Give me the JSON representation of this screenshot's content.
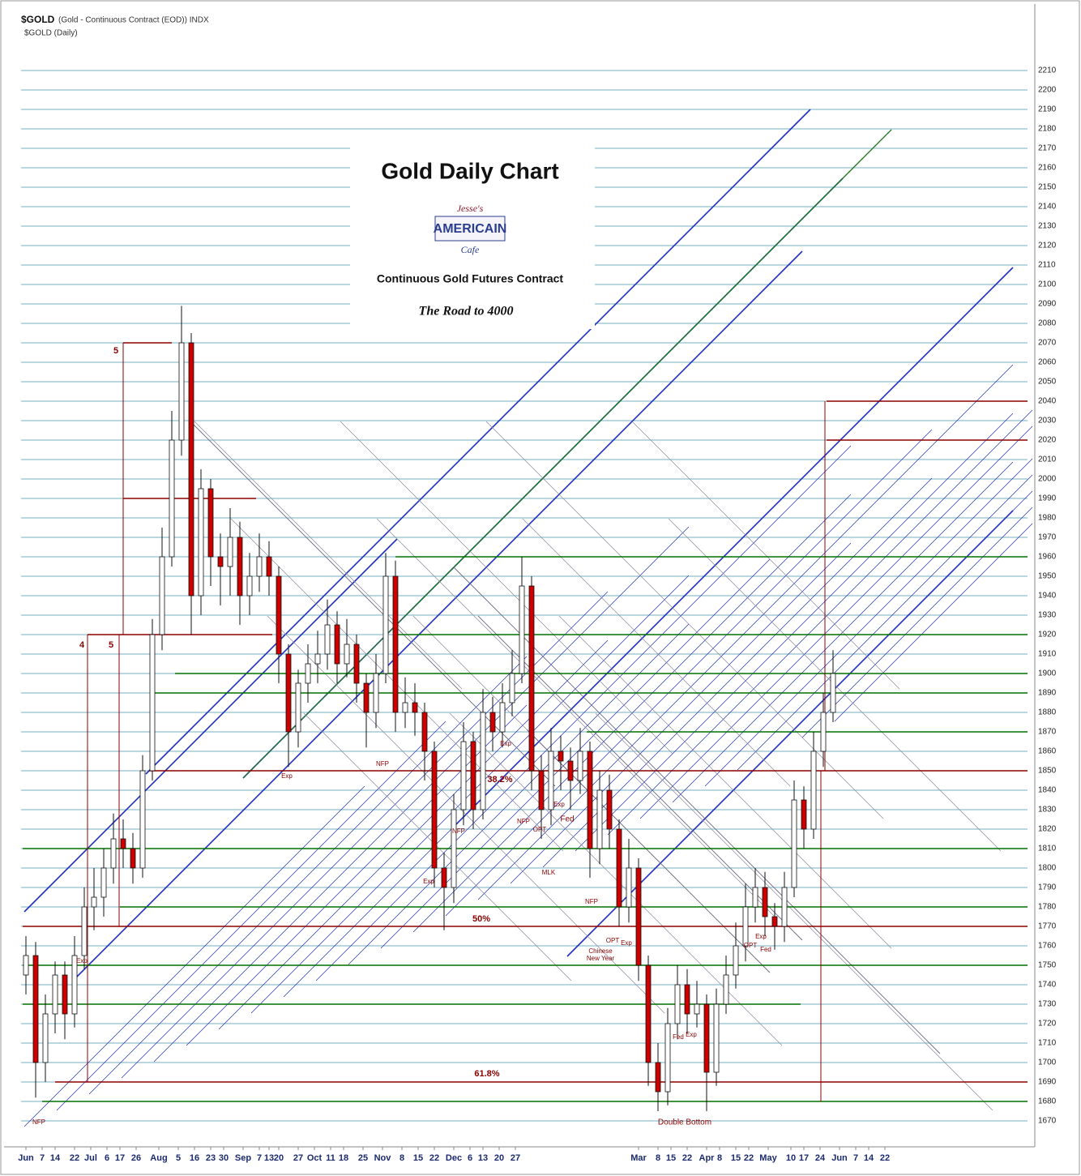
{
  "chart_data": {
    "type": "candlestick",
    "header": "$GOLD",
    "header_detail": "(Gold - Continuous Contract (EOD)) INDX",
    "header2": "$GOLD (Daily)",
    "title": "Gold Daily Chart",
    "logo": [
      "Jesse's",
      "AMERICAIN",
      "Cafe"
    ],
    "subtitle": "Continuous Gold Futures Contract",
    "tagline": "The Road to 4000",
    "up_color": "#ffffff",
    "down_color": "#cc0000",
    "grid": true,
    "grid_color": "#4a98ae",
    "xlim": [
      0,
      310
    ],
    "ylim": [
      1660,
      2240
    ],
    "x": [
      1,
      4,
      7,
      10,
      13,
      16,
      19,
      22,
      25,
      28,
      31,
      34,
      37,
      40,
      43,
      46,
      49,
      52,
      55,
      58,
      61,
      64,
      67,
      70,
      73,
      76,
      79,
      82,
      85,
      88,
      91,
      94,
      97,
      100,
      103,
      106,
      109,
      112,
      115,
      118,
      121,
      124,
      127,
      130,
      133,
      136,
      139,
      142,
      145,
      148,
      151,
      154,
      157,
      160,
      163,
      166,
      169,
      172,
      175,
      178,
      181,
      184,
      187,
      190,
      193,
      196,
      199,
      202,
      205,
      208,
      211,
      214,
      217,
      220,
      223,
      226,
      229,
      232,
      235,
      238,
      241,
      244,
      247,
      250
    ],
    "open": [
      1745,
      1755,
      1700,
      1725,
      1745,
      1725,
      1755,
      1780,
      1785,
      1800,
      1815,
      1810,
      1800,
      1850,
      1920,
      1960,
      2020,
      2070,
      1940,
      1995,
      1960,
      1955,
      1970,
      1940,
      1950,
      1960,
      1950,
      1910,
      1870,
      1895,
      1905,
      1910,
      1925,
      1905,
      1915,
      1895,
      1880,
      1900,
      1950,
      1880,
      1885,
      1880,
      1860,
      1800,
      1790,
      1830,
      1865,
      1830,
      1880,
      1870,
      1885,
      1900,
      1945,
      1850,
      1830,
      1860,
      1855,
      1845,
      1860,
      1810,
      1840,
      1820,
      1780,
      1800,
      1750,
      1700,
      1685,
      1720,
      1740,
      1725,
      1730,
      1695,
      1730,
      1745,
      1760,
      1780,
      1790,
      1775,
      1770,
      1790,
      1835,
      1820,
      1860,
      1880
    ],
    "high": [
      1765,
      1762,
      1735,
      1752,
      1752,
      1765,
      1790,
      1800,
      1810,
      1828,
      1825,
      1818,
      1858,
      1928,
      1975,
      2035,
      2089,
      2075,
      2005,
      2000,
      1972,
      1985,
      1978,
      1962,
      1972,
      1968,
      1955,
      1915,
      1902,
      1915,
      1922,
      1938,
      1932,
      1928,
      1920,
      1900,
      1910,
      1962,
      1958,
      1898,
      1895,
      1885,
      1865,
      1808,
      1838,
      1875,
      1870,
      1892,
      1888,
      1895,
      1912,
      1960,
      1950,
      1858,
      1872,
      1868,
      1862,
      1872,
      1865,
      1850,
      1848,
      1825,
      1815,
      1805,
      1755,
      1710,
      1728,
      1750,
      1748,
      1742,
      1735,
      1738,
      1755,
      1772,
      1792,
      1800,
      1798,
      1782,
      1798,
      1845,
      1842,
      1870,
      1890,
      1912
    ],
    "low": [
      1735,
      1682,
      1690,
      1715,
      1712,
      1718,
      1748,
      1768,
      1775,
      1792,
      1800,
      1792,
      1795,
      1845,
      1912,
      1955,
      2012,
      1920,
      1930,
      1945,
      1935,
      1940,
      1925,
      1930,
      1942,
      1940,
      1895,
      1852,
      1862,
      1885,
      1895,
      1902,
      1895,
      1898,
      1885,
      1862,
      1872,
      1895,
      1870,
      1872,
      1868,
      1845,
      1790,
      1768,
      1782,
      1822,
      1820,
      1825,
      1860,
      1862,
      1878,
      1895,
      1840,
      1815,
      1822,
      1840,
      1830,
      1838,
      1795,
      1802,
      1810,
      1770,
      1772,
      1742,
      1688,
      1675,
      1678,
      1712,
      1715,
      1718,
      1675,
      1688,
      1725,
      1738,
      1752,
      1772,
      1765,
      1758,
      1762,
      1785,
      1810,
      1815,
      1852,
      1875
    ],
    "close": [
      1755,
      1700,
      1725,
      1745,
      1725,
      1755,
      1780,
      1785,
      1800,
      1815,
      1810,
      1800,
      1850,
      1920,
      1960,
      2020,
      2070,
      1940,
      1995,
      1960,
      1955,
      1970,
      1940,
      1950,
      1960,
      1950,
      1910,
      1870,
      1895,
      1905,
      1910,
      1925,
      1905,
      1915,
      1895,
      1880,
      1900,
      1950,
      1880,
      1885,
      1880,
      1860,
      1800,
      1790,
      1830,
      1865,
      1830,
      1880,
      1870,
      1885,
      1900,
      1945,
      1850,
      1830,
      1860,
      1855,
      1845,
      1860,
      1810,
      1840,
      1820,
      1780,
      1800,
      1750,
      1700,
      1685,
      1720,
      1740,
      1725,
      1730,
      1695,
      1730,
      1745,
      1760,
      1780,
      1790,
      1775,
      1770,
      1790,
      1835,
      1820,
      1860,
      1880,
      1900
    ],
    "yticks": [
      1670,
      1680,
      1690,
      1700,
      1710,
      1720,
      1730,
      1740,
      1750,
      1760,
      1770,
      1780,
      1790,
      1800,
      1810,
      1820,
      1830,
      1840,
      1850,
      1860,
      1870,
      1880,
      1890,
      1900,
      1910,
      1920,
      1930,
      1940,
      1950,
      1960,
      1970,
      1980,
      1990,
      2000,
      2010,
      2020,
      2030,
      2040,
      2050,
      2060,
      2070,
      2080,
      2090,
      2100,
      2110,
      2120,
      2130,
      2140,
      2150,
      2160,
      2170,
      2180,
      2190,
      2200,
      2210
    ],
    "xticks": [
      {
        "value": 1,
        "label": "Jun"
      },
      {
        "value": 6,
        "label": "7"
      },
      {
        "value": 10,
        "label": "14"
      },
      {
        "value": 16,
        "label": "22"
      },
      {
        "value": 21,
        "label": "Jul"
      },
      {
        "value": 26,
        "label": "6"
      },
      {
        "value": 30,
        "label": "17"
      },
      {
        "value": 35,
        "label": "26"
      },
      {
        "value": 42,
        "label": "Aug"
      },
      {
        "value": 48,
        "label": "5"
      },
      {
        "value": 53,
        "label": "16"
      },
      {
        "value": 58,
        "label": "23"
      },
      {
        "value": 62,
        "label": "30"
      },
      {
        "value": 68,
        "label": "Sep"
      },
      {
        "value": 73,
        "label": "7"
      },
      {
        "value": 76,
        "label": "13"
      },
      {
        "value": 79,
        "label": "20"
      },
      {
        "value": 85,
        "label": "27"
      },
      {
        "value": 90,
        "label": "Oct"
      },
      {
        "value": 95,
        "label": "11"
      },
      {
        "value": 99,
        "label": "18"
      },
      {
        "value": 105,
        "label": "25"
      },
      {
        "value": 111,
        "label": "Nov"
      },
      {
        "value": 117,
        "label": "8"
      },
      {
        "value": 122,
        "label": "15"
      },
      {
        "value": 127,
        "label": "22"
      },
      {
        "value": 133,
        "label": "Dec"
      },
      {
        "value": 138,
        "label": "6"
      },
      {
        "value": 142,
        "label": "13"
      },
      {
        "value": 147,
        "label": "20"
      },
      {
        "value": 152,
        "label": "27"
      },
      {
        "value": 190,
        "label": "Mar"
      },
      {
        "value": 196,
        "label": "8"
      },
      {
        "value": 200,
        "label": "15"
      },
      {
        "value": 205,
        "label": "22"
      },
      {
        "value": 211,
        "label": "Apr"
      },
      {
        "value": 215,
        "label": "8"
      },
      {
        "value": 220,
        "label": "15"
      },
      {
        "value": 224,
        "label": "22"
      },
      {
        "value": 230,
        "label": "May"
      },
      {
        "value": 237,
        "label": "10"
      },
      {
        "value": 241,
        "label": "17"
      },
      {
        "value": 246,
        "label": "24"
      },
      {
        "value": 252,
        "label": "Jun"
      },
      {
        "value": 257,
        "label": "7"
      },
      {
        "value": 261,
        "label": "14"
      },
      {
        "value": 266,
        "label": "22"
      }
    ],
    "levels": [
      {
        "value": 1960,
        "color": "#007000",
        "x": [
          115,
          310
        ]
      },
      {
        "value": 1920,
        "color": "#007000",
        "x": [
          115,
          310
        ]
      },
      {
        "value": 1900,
        "color": "#007000",
        "x": [
          47,
          310
        ]
      },
      {
        "value": 1890,
        "color": "#007000",
        "x": [
          40,
          310
        ]
      },
      {
        "value": 1870,
        "color": "#007000",
        "x": [
          174,
          310
        ]
      },
      {
        "value": 1810,
        "color": "#007000",
        "x": [
          0,
          310
        ]
      },
      {
        "value": 1780,
        "color": "#007000",
        "x": [
          30,
          310
        ]
      },
      {
        "value": 1750,
        "color": "#007000",
        "x": [
          0,
          310
        ]
      },
      {
        "value": 1730,
        "color": "#007000",
        "x": [
          0,
          240
        ]
      },
      {
        "value": 1680,
        "color": "#007000",
        "x": [
          6,
          310
        ]
      },
      {
        "value": 2070,
        "color": "#8b0000",
        "x": [
          31,
          46
        ]
      },
      {
        "value": 1990,
        "color": "#8b0000",
        "x": [
          31,
          72
        ]
      },
      {
        "value": 1920,
        "color": "#8b0000",
        "x": [
          20,
          77
        ]
      },
      {
        "value": 1850,
        "color": "#8b0000",
        "x": [
          39,
          310
        ]
      },
      {
        "value": 1770,
        "color": "#8b0000",
        "x": [
          0,
          310
        ]
      },
      {
        "value": 1690,
        "color": "#8b0000",
        "x": [
          10,
          310
        ]
      },
      {
        "value": 2040,
        "color": "#8b0000",
        "x": [
          248,
          310
        ]
      },
      {
        "value": 2020,
        "color": "#8b0000",
        "x": [
          248,
          310
        ]
      }
    ],
    "annotations": [
      "5",
      "4",
      "5",
      "NFP",
      "Exp",
      "Exp",
      "NFP",
      "38.2%",
      "Exp",
      "NFP",
      "Exp",
      "50%",
      "NFP",
      "OPT",
      "Exp",
      "Fed",
      "MLK",
      "NFP",
      "OPT",
      "Exp",
      "Chinese",
      "New Year",
      "Fed",
      "Exp",
      "61.8%",
      "Double Bottom",
      "OPT",
      "Exp",
      "Fed"
    ]
  }
}
